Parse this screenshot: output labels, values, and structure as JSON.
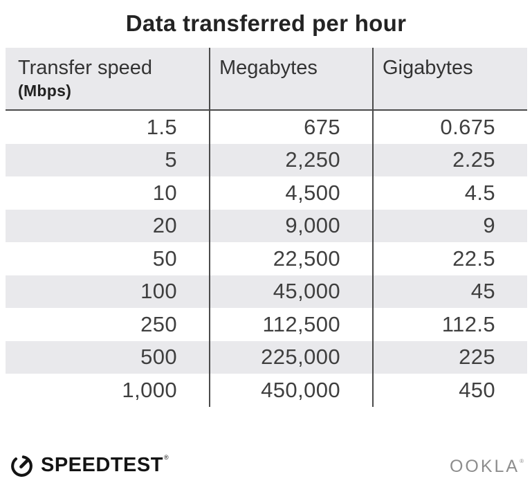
{
  "title": "Data transferred per hour",
  "chart_data": {
    "type": "table",
    "title": "Data transferred per hour",
    "columns": [
      {
        "label": "Transfer speed",
        "sublabel": "(Mbps)"
      },
      {
        "label": "Megabytes",
        "sublabel": ""
      },
      {
        "label": "Gigabytes",
        "sublabel": ""
      }
    ],
    "rows": [
      [
        "1.5",
        "675",
        "0.675"
      ],
      [
        "5",
        "2,250",
        "2.25"
      ],
      [
        "10",
        "4,500",
        "4.5"
      ],
      [
        "20",
        "9,000",
        "9"
      ],
      [
        "50",
        "22,500",
        "22.5"
      ],
      [
        "100",
        "45,000",
        "45"
      ],
      [
        "250",
        "112,500",
        "112.5"
      ],
      [
        "500",
        "225,000",
        "225"
      ],
      [
        "1,000",
        "450,000",
        "450"
      ]
    ],
    "layout": {
      "striped_rows": "even rows shaded",
      "stripe_color": "#e9e9ec",
      "divider_color": "#4a4a4a",
      "value_alignment": "right"
    }
  },
  "footer": {
    "speedtest_label": "SPEEDTEST",
    "speedtest_mark": "®",
    "ookla_label": "OOKLA",
    "ookla_mark": "®"
  },
  "colors": {
    "background": "#ffffff",
    "title_text": "#232323",
    "stripe": "#e9e9ec",
    "divider": "#4a4a4a",
    "number_text": "#3f3f3f",
    "ookla_gray": "#8d8d8d",
    "logo_black": "#141414"
  }
}
